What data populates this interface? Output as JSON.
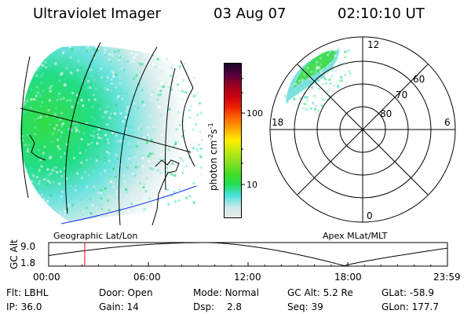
{
  "header": {
    "instrument": "Ultraviolet Imager",
    "date": "03 Aug 07",
    "time": "02:10:10 UT"
  },
  "colorbar": {
    "unit_main": "photon cm",
    "unit_exp1": "-2",
    "unit_s": "s",
    "unit_exp2": "-1",
    "ticks": [
      "100",
      "10"
    ],
    "stops": [
      "#e8ecec",
      "#c8e8e8",
      "#48e0e0",
      "#22dd55",
      "#44dd22",
      "#88e022",
      "#c0e810",
      "#ffee00",
      "#ffaa00",
      "#ff6a00",
      "#ee2200",
      "#cc0010",
      "#990022",
      "#550040",
      "#1a0828"
    ]
  },
  "geo_panel": {
    "caption": "Geographic Lat/Lon"
  },
  "polar_panel": {
    "caption": "Apex MLat/MLT",
    "mlt_labels": {
      "top": "12",
      "left": "18",
      "right": "6",
      "bottom": "0"
    },
    "lat_labels": [
      "60",
      "70",
      "80"
    ]
  },
  "altitude_plot": {
    "ylabel": "GC Alt",
    "ymax_label": "9.0",
    "ymin_label": "1.8",
    "ymin": 1.8,
    "ymax": 9.0,
    "time_ticks": [
      "00:00",
      "06:00",
      "12:00",
      "18:00",
      "23:59"
    ],
    "current_time_hours": 2.17,
    "marker_color": "#ff0000"
  },
  "info": {
    "row1": [
      {
        "label": "Flt:",
        "value": "LBHL"
      },
      {
        "label": "Door:",
        "value": "Open"
      },
      {
        "label": "Mode:",
        "value": "Normal"
      },
      {
        "label": "GC Alt:",
        "value": "5.2 Re"
      },
      {
        "label": "GLat:",
        "value": "-58.9"
      }
    ],
    "row2": [
      {
        "label": "IP:",
        "value": "36.0"
      },
      {
        "label": "Gain:",
        "value": "14"
      },
      {
        "label": "Dsp:",
        "value": "2.8"
      },
      {
        "label": "Seq:",
        "value": "39"
      },
      {
        "label": "GLon:",
        "value": "177.7"
      }
    ]
  }
}
